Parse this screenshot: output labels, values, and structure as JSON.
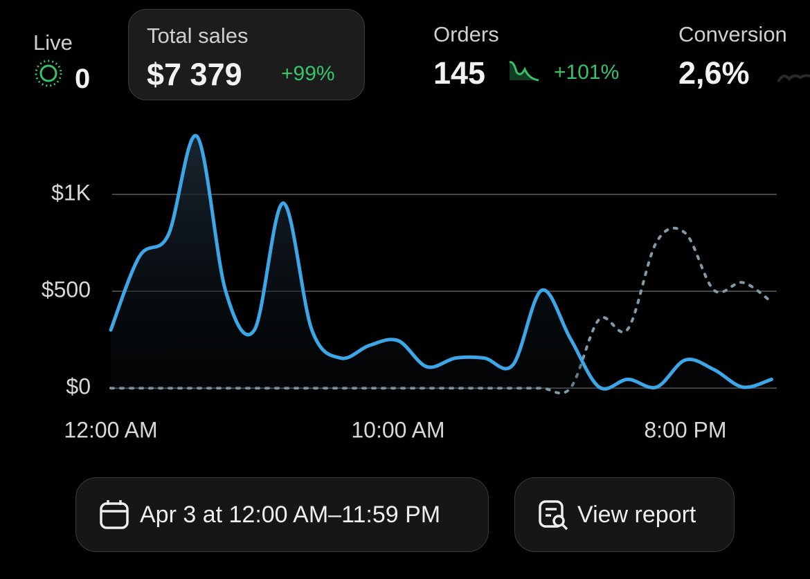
{
  "metrics": [
    {
      "label": "Live",
      "value": "0"
    },
    {
      "label": "Total sales",
      "value": "$7 379",
      "change": "+99%"
    },
    {
      "label": "Orders",
      "value": "145",
      "change": "+101%"
    },
    {
      "label": "Conversion",
      "value": "2,6%"
    }
  ],
  "chart_data": {
    "type": "line",
    "x": [
      0,
      1,
      2,
      3,
      4,
      5,
      6,
      7,
      8,
      9,
      10,
      11,
      12,
      13,
      14,
      15,
      16,
      17,
      18,
      19,
      20,
      21,
      22,
      23
    ],
    "series": [
      {
        "color": "#3ba7e8",
        "style": "solid",
        "values": [
          300,
          680,
          790,
          1300,
          500,
          300,
          955,
          300,
          155,
          220,
          245,
          110,
          155,
          155,
          120,
          505,
          255,
          5,
          45,
          5,
          145,
          95,
          5,
          45
        ]
      },
      {
        "color": "#7f9aa8",
        "style": "dotted",
        "values": [
          0,
          0,
          0,
          0,
          0,
          0,
          0,
          0,
          0,
          0,
          0,
          0,
          0,
          0,
          0,
          0,
          0,
          355,
          305,
          755,
          800,
          505,
          545,
          445
        ]
      }
    ],
    "xlim": [
      0,
      23.1
    ],
    "xticks": [
      {
        "value": 0,
        "label": "12:00 AM"
      },
      {
        "value": 10,
        "label": "10:00 AM"
      },
      {
        "value": 20,
        "label": "8:00 PM"
      }
    ],
    "ylim": [
      0,
      1350
    ],
    "yticks": [
      {
        "value": 0,
        "label": "$0"
      },
      {
        "value": 500,
        "label": "$500"
      },
      {
        "value": 1000,
        "label": "$1K"
      }
    ],
    "grid": true
  },
  "buttons": {
    "date_range": "Apr 3 at 12:00 AM–11:59 PM",
    "report": "View report"
  }
}
